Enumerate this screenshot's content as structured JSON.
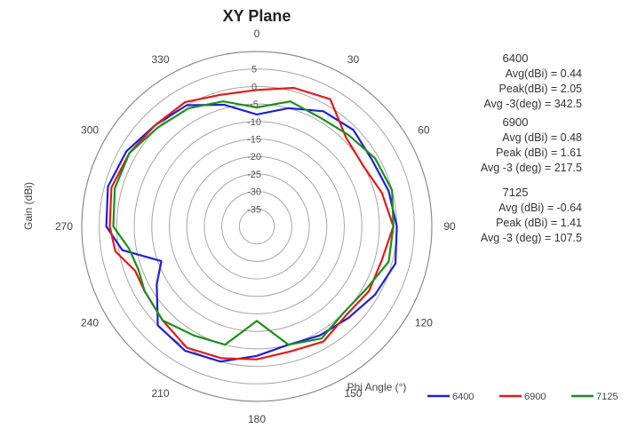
{
  "chart_data": {
    "type": "polar-line",
    "title": "XY Plane",
    "r_label": "Gain (dBi)",
    "theta_label": "Phi Angle (°)",
    "r_ticks": [
      "5",
      "0",
      "-5",
      "-10",
      "-15",
      "-20",
      "-25",
      "-30",
      "-35"
    ],
    "r_range": [
      -40,
      10
    ],
    "angle_ticks": [
      "0",
      "30",
      "60",
      "90",
      "120",
      "150",
      "180",
      "210",
      "240",
      "270",
      "300",
      "330"
    ],
    "angles_deg": [
      0,
      15,
      30,
      45,
      60,
      75,
      90,
      105,
      120,
      135,
      150,
      165,
      180,
      195,
      210,
      225,
      240,
      250,
      260,
      270,
      285,
      300,
      315,
      330,
      345
    ],
    "series": [
      {
        "name": "6400",
        "color": "#1f1fd6",
        "values": [
          -8,
          -5,
          -2,
          -1,
          -2,
          -1,
          0,
          1,
          -1,
          -3,
          -4,
          -5,
          -3,
          0,
          1,
          0,
          -7,
          -11,
          -1,
          3,
          4,
          3,
          1,
          0,
          -4
        ]
      },
      {
        "name": "6900",
        "color": "#e31a1c",
        "values": [
          -1,
          1,
          2,
          -4,
          -5,
          -3,
          -1,
          -3,
          -3,
          -4,
          -2,
          -3,
          -2,
          -1,
          0,
          -2,
          -3,
          -3,
          1,
          2,
          3,
          2,
          1,
          1,
          -1
        ]
      },
      {
        "name": "7125",
        "color": "#1b8f1b",
        "values": [
          -6,
          -3,
          -4,
          -3,
          -1,
          0,
          -1,
          -1,
          -4,
          -5,
          -3,
          -5,
          -13,
          -5,
          -4,
          -2,
          -3,
          -4,
          -3,
          1,
          2,
          2,
          0,
          -1,
          -3
        ]
      }
    ],
    "stats": [
      {
        "freq": "6400",
        "lines": [
          "Avg(dBi) = 0.44",
          "Peak(dBi) = 2.05",
          "Avg -3(deg) = 342.5"
        ]
      },
      {
        "freq": "6900",
        "lines": [
          "Avg (dBi) =  0.48",
          "Peak (dBi) =  1.61",
          "Avg -3 (deg) =  217.5"
        ]
      },
      {
        "freq": "7125",
        "lines": [
          "Avg (dBi) =  -0.64",
          "Peak (dBi) =  1.41",
          "Avg -3 (deg) = 107.5"
        ]
      }
    ],
    "legend": [
      "6400",
      "6900",
      "7125"
    ],
    "legend_position": "bottom-right",
    "grid": true
  }
}
